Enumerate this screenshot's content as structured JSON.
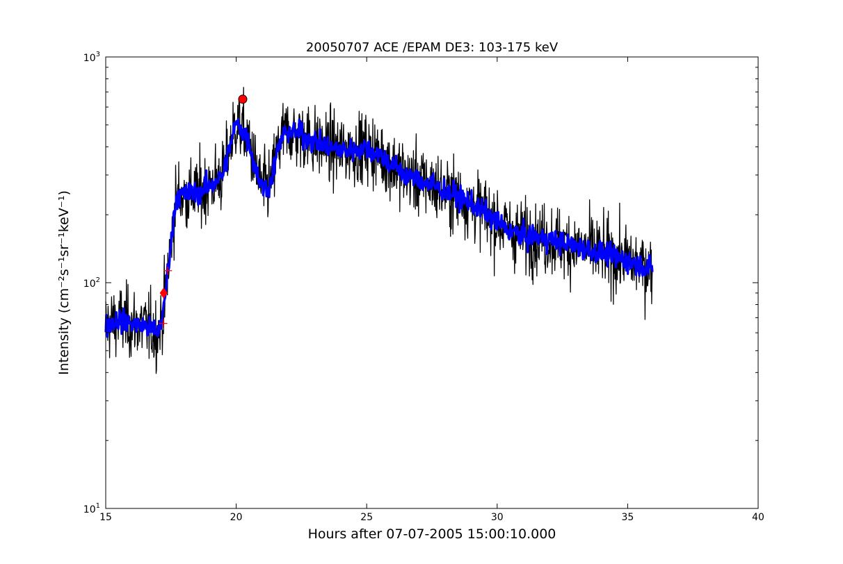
{
  "chart_data": {
    "type": "line",
    "title": "20050707 ACE /EPAM DE3: 103-175 keV",
    "xlabel": "Hours after 07-07-2005 15:00:10.000",
    "ylabel": "Intensity (cm⁻²s⁻¹sr⁻¹keV⁻¹)",
    "xlim": [
      15,
      40
    ],
    "ylim": [
      10,
      1000
    ],
    "yscale": "log",
    "grid": false,
    "x_ticks": [
      15,
      20,
      25,
      30,
      35,
      40
    ],
    "x_tick_labels": [
      "15",
      "20",
      "25",
      "30",
      "35",
      "40"
    ],
    "y_ticks": [
      10,
      100,
      1000
    ],
    "y_tick_labels": [
      {
        "base": "10",
        "exp": "1"
      },
      {
        "base": "10",
        "exp": "2"
      },
      {
        "base": "10",
        "exp": "3"
      }
    ],
    "series": [
      {
        "name": "",
        "color": "#000000",
        "style": "noisy",
        "x": [
          15.0,
          15.5,
          16.0,
          16.5,
          17.0,
          17.2,
          17.4,
          17.7,
          18.0,
          18.5,
          19.0,
          19.5,
          19.8,
          20.0,
          20.2,
          20.5,
          20.7,
          21.0,
          21.3,
          21.6,
          21.8,
          22.0,
          22.5,
          23.0,
          23.5,
          24.0,
          24.5,
          25.0,
          25.5,
          26.0,
          26.5,
          27.0,
          27.5,
          28.0,
          28.5,
          29.0,
          29.5,
          30.0,
          30.5,
          31.0,
          31.5,
          32.0,
          32.5,
          33.0,
          33.5,
          34.0,
          34.5,
          35.0,
          35.5,
          35.95
        ],
        "values": [
          65,
          68,
          66,
          64,
          60,
          72,
          120,
          240,
          245,
          250,
          270,
          300,
          420,
          510,
          480,
          420,
          330,
          265,
          270,
          390,
          450,
          470,
          455,
          420,
          400,
          385,
          390,
          395,
          370,
          330,
          300,
          285,
          270,
          255,
          240,
          225,
          205,
          185,
          170,
          160,
          160,
          155,
          150,
          145,
          140,
          135,
          130,
          125,
          120,
          115
        ]
      },
      {
        "name": "",
        "color": "#0000ff",
        "style": "smooth",
        "x": [
          15.0,
          15.5,
          16.0,
          16.5,
          17.0,
          17.2,
          17.4,
          17.7,
          18.0,
          18.5,
          19.0,
          19.5,
          19.8,
          20.0,
          20.2,
          20.5,
          20.7,
          21.0,
          21.3,
          21.6,
          21.8,
          22.0,
          22.5,
          23.0,
          23.5,
          24.0,
          24.5,
          25.0,
          25.5,
          26.0,
          26.5,
          27.0,
          27.5,
          28.0,
          28.5,
          29.0,
          29.5,
          30.0,
          30.5,
          31.0,
          31.5,
          32.0,
          32.5,
          33.0,
          33.5,
          34.0,
          34.5,
          35.0,
          35.5,
          35.95
        ],
        "values": [
          65,
          68,
          66,
          64,
          60,
          72,
          120,
          240,
          245,
          250,
          270,
          300,
          420,
          510,
          480,
          420,
          330,
          265,
          270,
          390,
          450,
          470,
          455,
          420,
          400,
          385,
          390,
          395,
          370,
          330,
          300,
          285,
          270,
          255,
          240,
          225,
          205,
          185,
          170,
          160,
          160,
          155,
          150,
          145,
          140,
          135,
          130,
          125,
          120,
          115
        ]
      }
    ],
    "markers": [
      {
        "type": "circle",
        "x": 20.25,
        "y": 650,
        "color": "#ff0000"
      },
      {
        "type": "diamond",
        "x": 17.22,
        "y": 90,
        "color": "#ff0000"
      },
      {
        "type": "plus",
        "x": 17.38,
        "y": 113,
        "color": "#ff0000"
      },
      {
        "type": "plus",
        "x": 17.2,
        "y": 66,
        "color": "#ff0000"
      }
    ]
  }
}
